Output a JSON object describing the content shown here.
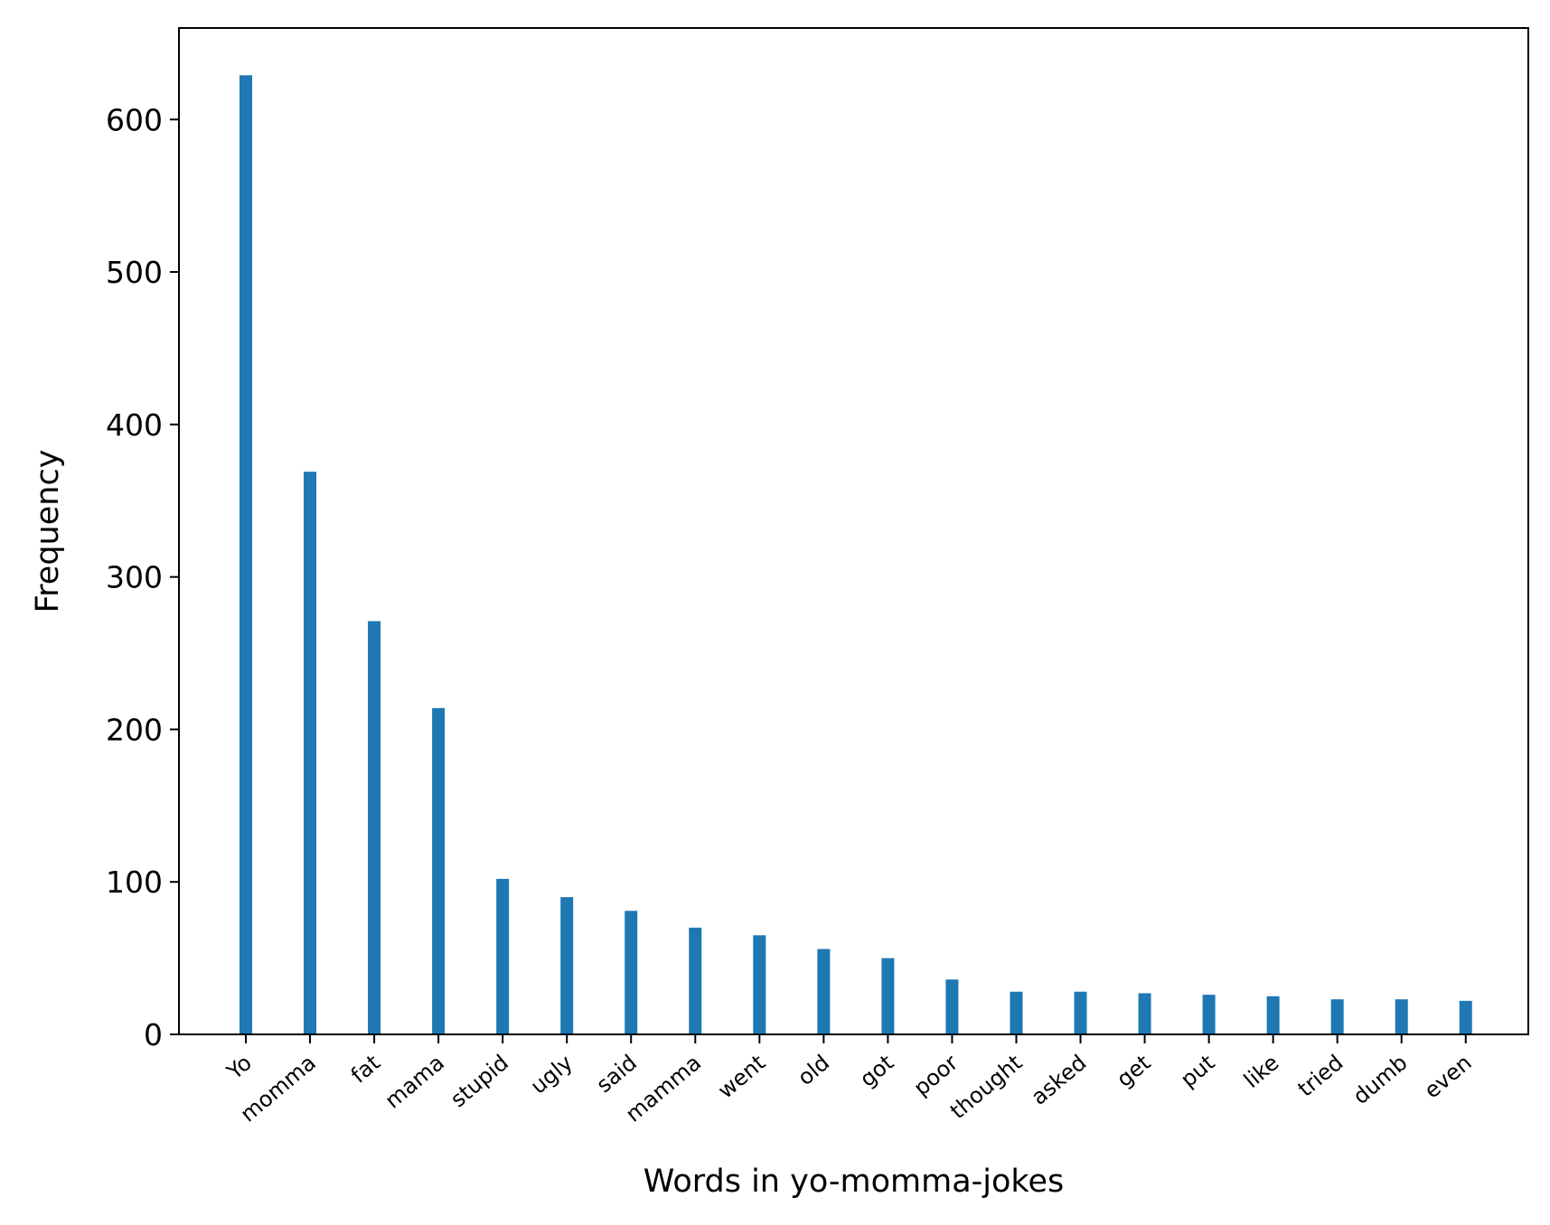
{
  "chart_data": {
    "type": "bar",
    "xlabel": "Words in yo-momma-jokes",
    "ylabel": "Frequency",
    "categories": [
      "Yo",
      "momma",
      "fat",
      "mama",
      "stupid",
      "ugly",
      "said",
      "mamma",
      "went",
      "old",
      "got",
      "poor",
      "thought",
      "asked",
      "get",
      "put",
      "like",
      "tried",
      "dumb",
      "even"
    ],
    "values": [
      629,
      369,
      271,
      214,
      102,
      90,
      81,
      70,
      65,
      56,
      50,
      36,
      28,
      28,
      27,
      26,
      25,
      23,
      23,
      22
    ],
    "ylim": [
      0,
      660
    ],
    "yticks": [
      0,
      100,
      200,
      300,
      400,
      500,
      600
    ],
    "bar_color": "#1f77b4",
    "grid": false,
    "legend": false
  }
}
